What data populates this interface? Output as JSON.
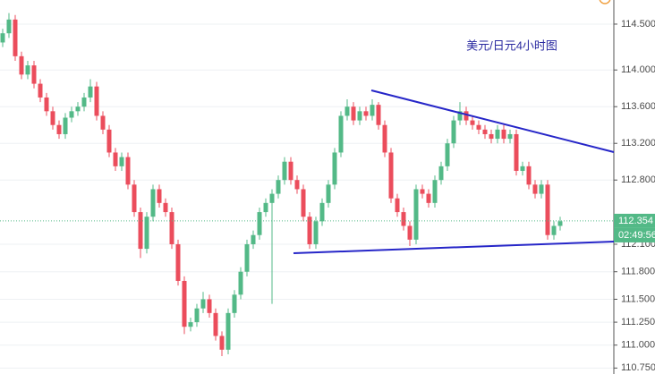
{
  "chart_data": {
    "type": "candlestick",
    "title": "美元/日元4小时图",
    "open": [
      114.3,
      114.4,
      114.55,
      114.15,
      113.95,
      114.05,
      113.85,
      113.7,
      113.55,
      113.4,
      113.3,
      113.48,
      113.55,
      113.6,
      113.7,
      113.82,
      113.5,
      113.35,
      113.1,
      112.95,
      113.05,
      112.75,
      112.45,
      112.05,
      112.4,
      112.7,
      112.55,
      112.45,
      112.1,
      111.7,
      111.2,
      111.25,
      111.4,
      111.5,
      111.35,
      111.1,
      110.95,
      111.35,
      111.55,
      111.8,
      112.1,
      112.2,
      112.45,
      112.55,
      112.65,
      112.8,
      113.0,
      112.8,
      112.7,
      112.4,
      112.1,
      112.35,
      112.55,
      112.75,
      113.1,
      113.5,
      113.6,
      113.45,
      113.55,
      113.5,
      113.62,
      113.4,
      113.1,
      112.6,
      112.45,
      112.3,
      112.15,
      112.7,
      112.65,
      112.55,
      112.8,
      112.95,
      113.2,
      113.45,
      113.55,
      113.45,
      113.4,
      113.35,
      113.3,
      113.25,
      113.35,
      113.25,
      113.3,
      112.9,
      112.95,
      112.75,
      112.65,
      112.75,
      112.2,
      112.3
    ],
    "high": [
      114.45,
      114.62,
      114.6,
      114.2,
      114.1,
      114.1,
      113.9,
      113.75,
      113.6,
      113.45,
      113.53,
      113.6,
      113.65,
      113.75,
      113.9,
      113.87,
      113.55,
      113.4,
      113.15,
      113.1,
      113.1,
      112.8,
      112.5,
      112.45,
      112.75,
      112.75,
      112.6,
      112.5,
      112.15,
      111.75,
      111.3,
      111.45,
      111.58,
      111.55,
      111.4,
      111.15,
      111.4,
      111.6,
      111.85,
      112.15,
      112.25,
      112.5,
      112.6,
      112.7,
      112.85,
      113.05,
      113.05,
      112.85,
      112.75,
      112.45,
      112.4,
      112.6,
      112.8,
      113.15,
      113.55,
      113.68,
      113.65,
      113.6,
      113.6,
      113.68,
      113.65,
      113.45,
      113.15,
      112.65,
      112.5,
      112.35,
      112.75,
      112.75,
      112.7,
      112.85,
      113.0,
      113.25,
      113.5,
      113.65,
      113.6,
      113.5,
      113.45,
      113.4,
      113.35,
      113.4,
      113.4,
      113.35,
      113.35,
      113.0,
      113.0,
      112.8,
      112.8,
      112.8,
      112.35,
      112.4
    ],
    "low": [
      114.25,
      114.35,
      114.1,
      113.9,
      113.9,
      113.8,
      113.65,
      113.5,
      113.35,
      113.25,
      113.25,
      113.43,
      113.5,
      113.55,
      113.65,
      113.45,
      113.3,
      113.05,
      112.9,
      112.9,
      112.7,
      112.4,
      111.95,
      112.0,
      112.35,
      112.5,
      112.4,
      112.05,
      111.65,
      111.12,
      111.15,
      111.2,
      111.35,
      111.3,
      111.05,
      110.88,
      110.9,
      111.3,
      111.5,
      111.75,
      112.05,
      112.15,
      112.4,
      111.45,
      112.6,
      112.75,
      112.75,
      112.65,
      112.35,
      112.05,
      112.05,
      112.3,
      112.5,
      112.7,
      113.05,
      113.45,
      113.4,
      113.4,
      113.45,
      113.45,
      113.35,
      113.05,
      112.55,
      112.4,
      112.25,
      112.08,
      112.1,
      112.6,
      112.5,
      112.5,
      112.75,
      112.9,
      113.15,
      113.4,
      113.4,
      113.35,
      113.3,
      113.25,
      113.2,
      113.2,
      113.2,
      113.2,
      112.85,
      112.85,
      112.7,
      112.6,
      112.6,
      112.15,
      112.15,
      112.25
    ],
    "close": [
      114.4,
      114.55,
      114.15,
      113.95,
      114.05,
      113.85,
      113.7,
      113.55,
      113.4,
      113.3,
      113.48,
      113.55,
      113.6,
      113.7,
      113.82,
      113.5,
      113.35,
      113.1,
      112.95,
      113.05,
      112.75,
      112.45,
      112.05,
      112.4,
      112.7,
      112.55,
      112.45,
      112.1,
      111.7,
      111.2,
      111.25,
      111.4,
      111.5,
      111.35,
      111.1,
      110.95,
      111.35,
      111.55,
      111.8,
      112.1,
      112.2,
      112.45,
      112.55,
      112.65,
      112.8,
      113.0,
      112.8,
      112.7,
      112.4,
      112.1,
      112.35,
      112.55,
      112.75,
      113.1,
      113.5,
      113.6,
      113.45,
      113.55,
      113.5,
      113.62,
      113.4,
      113.1,
      112.6,
      112.45,
      112.3,
      112.15,
      112.7,
      112.65,
      112.55,
      112.8,
      112.95,
      113.2,
      113.45,
      113.55,
      113.45,
      113.4,
      113.35,
      113.3,
      113.25,
      113.35,
      113.25,
      113.3,
      112.9,
      112.95,
      112.75,
      112.65,
      112.75,
      112.2,
      112.3,
      112.35
    ],
    "up_color": "#53b987",
    "down_color": "#eb4d5c",
    "last_price": 112.354,
    "countdown": "02:49:56",
    "ylim": [
      110.685,
      114.763
    ],
    "yticks": [
      {
        "value": 114.5,
        "label": "114.500"
      },
      {
        "value": 114.0,
        "label": "114.000"
      },
      {
        "value": 113.6,
        "label": "113.600"
      },
      {
        "value": 113.2,
        "label": "113.200"
      },
      {
        "value": 112.8,
        "label": "112.800"
      },
      {
        "value": 112.1,
        "label": "112.100"
      },
      {
        "value": 111.8,
        "label": "111.800"
      },
      {
        "value": 111.5,
        "label": "111.500"
      },
      {
        "value": 111.25,
        "label": "111.250"
      },
      {
        "value": 111.0,
        "label": "111.000"
      },
      {
        "value": 110.75,
        "label": "110.750"
      }
    ],
    "grid": true
  }
}
